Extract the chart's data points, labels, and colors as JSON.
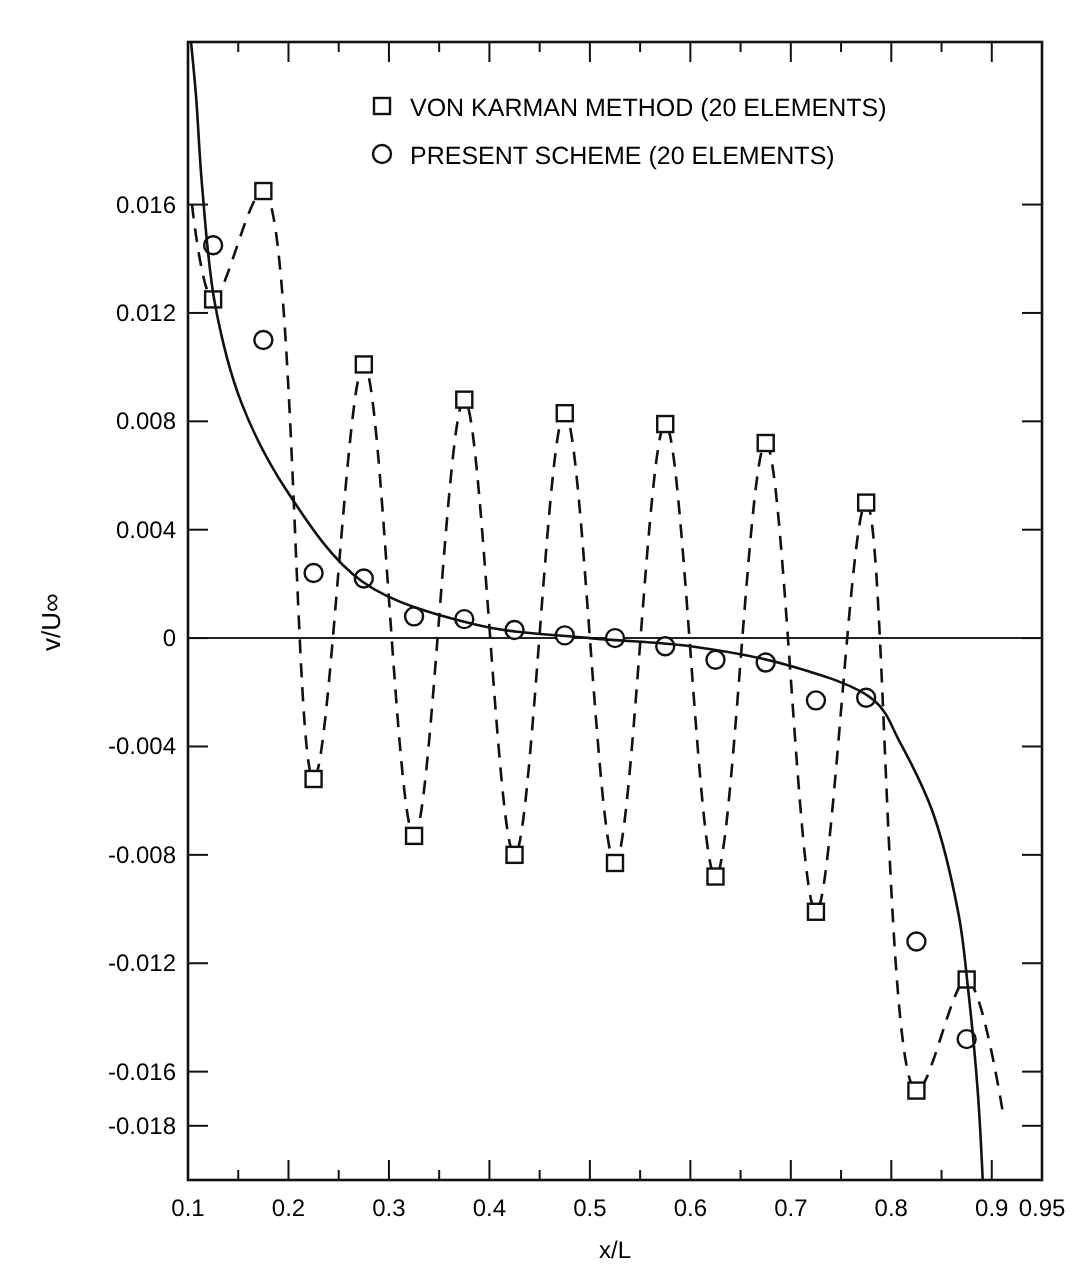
{
  "chart_data": {
    "type": "line",
    "xlabel": "x/L",
    "ylabel": "v/U∞",
    "xlim": [
      0.1,
      0.95
    ],
    "ylim": [
      -0.02,
      0.022
    ],
    "xticks": [
      {
        "value": 0.1,
        "label": "0.1"
      },
      {
        "value": 0.15,
        "label": null
      },
      {
        "value": 0.2,
        "label": "0.2"
      },
      {
        "value": 0.25,
        "label": null
      },
      {
        "value": 0.3,
        "label": "0.3"
      },
      {
        "value": 0.35,
        "label": null
      },
      {
        "value": 0.4,
        "label": "0.4"
      },
      {
        "value": 0.45,
        "label": null
      },
      {
        "value": 0.5,
        "label": "0.5"
      },
      {
        "value": 0.55,
        "label": null
      },
      {
        "value": 0.6,
        "label": "0.6"
      },
      {
        "value": 0.65,
        "label": null
      },
      {
        "value": 0.7,
        "label": "0.7"
      },
      {
        "value": 0.75,
        "label": null
      },
      {
        "value": 0.8,
        "label": "0.8"
      },
      {
        "value": 0.85,
        "label": null
      },
      {
        "value": 0.9,
        "label": "0.9"
      },
      {
        "value": 0.95,
        "label": "0.95"
      }
    ],
    "yticks": [
      0.016,
      0.012,
      0.008,
      0.004,
      0,
      -0.004,
      -0.008,
      -0.012,
      -0.016,
      -0.018
    ],
    "ref_lines": [
      {
        "axis": "y",
        "value": 0
      }
    ],
    "legend": "top right",
    "grid": false,
    "series": [
      {
        "color": "#111111",
        "line_style": "dashed",
        "marker": "none",
        "x": [
          0.104,
          0.125,
          0.175,
          0.225,
          0.275,
          0.325,
          0.375,
          0.425,
          0.475,
          0.525,
          0.575,
          0.625,
          0.675,
          0.725,
          0.775,
          0.825,
          0.875,
          0.911
        ],
        "values": [
          0.016,
          0.0125,
          0.0165,
          -0.0052,
          0.0101,
          -0.0073,
          0.0088,
          -0.008,
          0.0083,
          -0.0083,
          0.0079,
          -0.0088,
          0.0072,
          -0.0101,
          0.005,
          -0.0167,
          -0.0126,
          -0.0175
        ]
      },
      {
        "type": "scatter",
        "name": "VON KARMAN METHOD (20 ELEMENTS)",
        "color": "#111111",
        "marker": "square",
        "x": [
          0.125,
          0.175,
          0.225,
          0.275,
          0.325,
          0.375,
          0.425,
          0.475,
          0.525,
          0.575,
          0.625,
          0.675,
          0.725,
          0.775,
          0.825,
          0.875
        ],
        "values": [
          0.0125,
          0.0165,
          -0.0052,
          0.0101,
          -0.0073,
          0.0088,
          -0.008,
          0.0083,
          -0.0083,
          0.0079,
          -0.0088,
          0.0072,
          -0.0101,
          0.005,
          -0.0167,
          -0.0126
        ]
      },
      {
        "type": "scatter",
        "name": "PRESENT SCHEME (20 ELEMENTS)",
        "color": "#111111",
        "marker": "circle",
        "x": [
          0.125,
          0.175,
          0.225,
          0.275,
          0.325,
          0.375,
          0.425,
          0.475,
          0.525,
          0.575,
          0.625,
          0.675,
          0.725,
          0.775,
          0.825,
          0.875
        ],
        "values": [
          0.0145,
          0.011,
          0.0024,
          0.0022,
          0.0008,
          0.0007,
          0.0003,
          0.0001,
          0,
          -0.0003,
          -0.0008,
          -0.0009,
          -0.0023,
          -0.0022,
          -0.0112,
          -0.0148
        ]
      },
      {
        "color": "#111111",
        "line_style": "solid",
        "marker": "none",
        "x": [
          0.103,
          0.108,
          0.114,
          0.127,
          0.153,
          0.199,
          0.273,
          0.386,
          0.5,
          0.6,
          0.697,
          0.783,
          0.808,
          0.841,
          0.867,
          0.876,
          0.886,
          0.891
        ],
        "values": [
          0.022,
          0.02,
          0.0167,
          0.0123,
          0.0087,
          0.0054,
          0.0021,
          0.0005,
          0,
          -0.0003,
          -0.001,
          -0.0023,
          -0.0038,
          -0.0064,
          -0.0102,
          -0.0128,
          -0.0167,
          -0.02
        ]
      }
    ]
  }
}
